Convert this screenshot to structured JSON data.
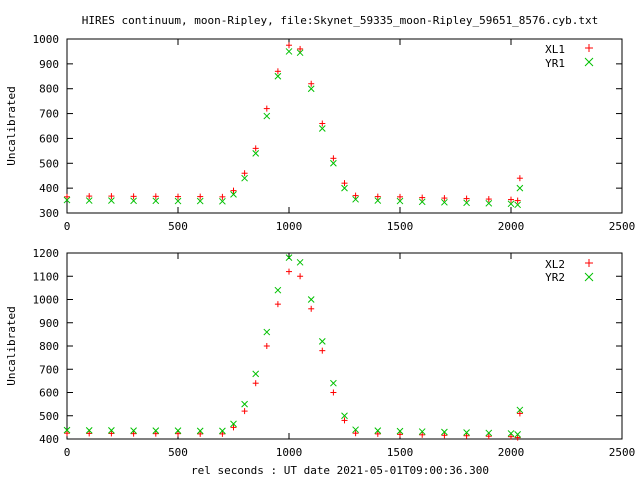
{
  "title": "HIRES continuum, moon-Ripley, file:Skynet_59335_moon-Ripley_59651_8576.cyb.txt",
  "xlabel": "rel seconds : UT date 2021-05-01T09:00:36.300",
  "colors": {
    "red": "#ff0000",
    "green": "#00c000"
  },
  "chart_data": [
    {
      "type": "scatter",
      "ylabel": "Uncalibrated",
      "xlim": [
        0,
        2500
      ],
      "ylim": [
        300,
        1000
      ],
      "xticks": [
        0,
        500,
        1000,
        1500,
        2000,
        2500
      ],
      "yticks": [
        300,
        400,
        500,
        600,
        700,
        800,
        900,
        1000
      ],
      "grid": false,
      "legend_position": "top-right",
      "series": [
        {
          "name": "XL1",
          "marker": "+",
          "color": "#ff0000",
          "x": [
            0,
            100,
            200,
            300,
            400,
            500,
            600,
            700,
            750,
            800,
            850,
            900,
            950,
            1000,
            1050,
            1100,
            1150,
            1200,
            1250,
            1300,
            1400,
            1500,
            1600,
            1700,
            1800,
            1900,
            2000,
            2030,
            2040
          ],
          "y": [
            365,
            368,
            368,
            367,
            367,
            366,
            366,
            365,
            390,
            460,
            560,
            720,
            870,
            975,
            960,
            820,
            660,
            520,
            420,
            370,
            366,
            365,
            362,
            360,
            358,
            356,
            354,
            350,
            440
          ]
        },
        {
          "name": "YR1",
          "marker": "x",
          "color": "#00c000",
          "x": [
            0,
            100,
            200,
            300,
            400,
            500,
            600,
            700,
            750,
            800,
            850,
            900,
            950,
            1000,
            1050,
            1100,
            1150,
            1200,
            1250,
            1300,
            1400,
            1500,
            1600,
            1700,
            1800,
            1900,
            2000,
            2030,
            2040
          ],
          "y": [
            352,
            350,
            350,
            349,
            349,
            348,
            348,
            347,
            375,
            440,
            540,
            690,
            850,
            950,
            945,
            800,
            640,
            500,
            400,
            355,
            350,
            348,
            345,
            343,
            341,
            339,
            337,
            333,
            400
          ]
        }
      ]
    },
    {
      "type": "scatter",
      "ylabel": "Uncalibrated",
      "xlim": [
        0,
        2500
      ],
      "ylim": [
        400,
        1200
      ],
      "xticks": [
        0,
        500,
        1000,
        1500,
        2000,
        2500
      ],
      "yticks": [
        400,
        500,
        600,
        700,
        800,
        900,
        1000,
        1100,
        1200
      ],
      "grid": false,
      "legend_position": "top-right",
      "series": [
        {
          "name": "XL2",
          "marker": "+",
          "color": "#ff0000",
          "x": [
            0,
            100,
            200,
            300,
            400,
            500,
            600,
            700,
            750,
            800,
            850,
            900,
            950,
            1000,
            1050,
            1100,
            1150,
            1200,
            1250,
            1300,
            1400,
            1500,
            1600,
            1700,
            1800,
            1900,
            2000,
            2030,
            2040
          ],
          "y": [
            425,
            424,
            424,
            423,
            423,
            423,
            422,
            422,
            450,
            520,
            640,
            800,
            980,
            1120,
            1100,
            960,
            780,
            600,
            480,
            425,
            422,
            420,
            418,
            416,
            414,
            412,
            410,
            406,
            510
          ]
        },
        {
          "name": "YR2",
          "marker": "x",
          "color": "#00c000",
          "x": [
            0,
            100,
            200,
            300,
            400,
            500,
            600,
            700,
            750,
            800,
            850,
            900,
            950,
            1000,
            1050,
            1100,
            1150,
            1200,
            1250,
            1300,
            1400,
            1500,
            1600,
            1700,
            1800,
            1900,
            2000,
            2030,
            2040
          ],
          "y": [
            438,
            437,
            437,
            436,
            436,
            436,
            435,
            435,
            465,
            550,
            680,
            860,
            1040,
            1180,
            1160,
            1000,
            820,
            640,
            500,
            440,
            436,
            434,
            432,
            430,
            428,
            426,
            424,
            420,
            525
          ]
        }
      ]
    }
  ]
}
